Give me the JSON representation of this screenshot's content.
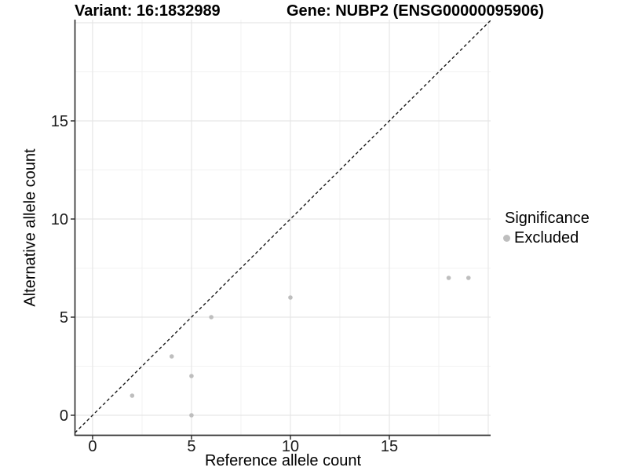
{
  "chart_data": {
    "type": "scatter",
    "title_left": "Variant: 16:1832989",
    "title_right": "Gene: NUBP2 (ENSG00000095906)",
    "xlabel": "Reference allele count",
    "ylabel": "Alternative allele count",
    "xlim": [
      -0.87,
      20.12
    ],
    "ylim": [
      -1.0,
      20.16
    ],
    "x_ticks": [
      0,
      5,
      10,
      15
    ],
    "y_ticks": [
      0,
      5,
      10,
      15
    ],
    "x_grid_major": [
      0,
      5,
      10,
      15,
      20
    ],
    "x_grid_minor": [
      2.5,
      7.5,
      12.5,
      17.5
    ],
    "y_grid_major": [
      0,
      5,
      10,
      15,
      20
    ],
    "y_grid_minor": [
      2.5,
      7.5,
      12.5,
      17.5
    ],
    "grid": true,
    "legend_position": "right",
    "series": [
      {
        "name": "Excluded",
        "color": "#bebebe",
        "points": [
          [
            2,
            1
          ],
          [
            4,
            3
          ],
          [
            5,
            0
          ],
          [
            5,
            2
          ],
          [
            6,
            5
          ],
          [
            10,
            6
          ],
          [
            18,
            7
          ],
          [
            19,
            7
          ]
        ]
      }
    ],
    "reference_line": {
      "type": "identity",
      "slope": 1,
      "intercept": 0,
      "style": "dashed",
      "color": "#1a1a1a"
    },
    "legend": {
      "title": "Significance",
      "entries": [
        {
          "label": "Excluded",
          "color": "#bebebe"
        }
      ]
    }
  }
}
